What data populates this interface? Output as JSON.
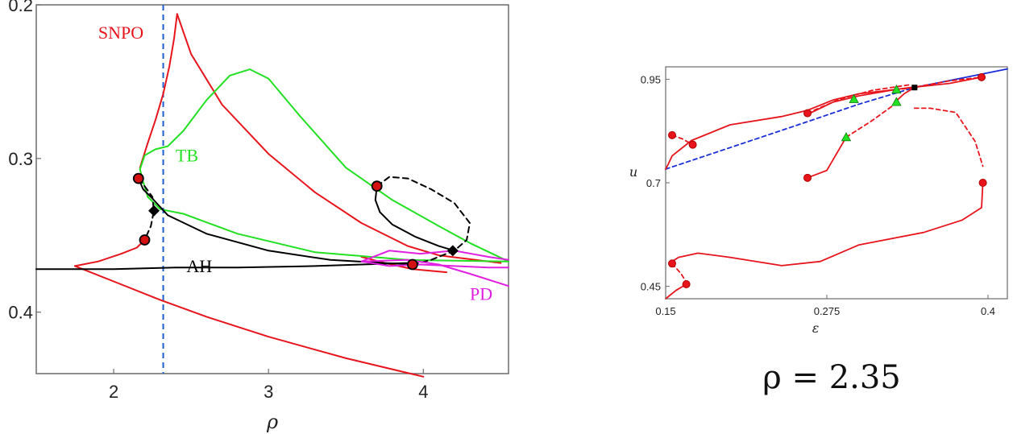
{
  "chart_data": [
    {
      "type": "line",
      "xlabel": "ρ",
      "ylabel": "",
      "xlim": [
        1.5,
        4.55
      ],
      "ylim": [
        0.2,
        0.44
      ],
      "y_inverted": true,
      "xticks": [
        "2",
        "3",
        "4"
      ],
      "yticks": [
        "0.2",
        "0.3",
        "0.4"
      ],
      "xtick_values": [
        2,
        3,
        4
      ],
      "ytick_values": [
        0.2,
        0.3,
        0.4
      ],
      "grid": false,
      "colors": {
        "SNPO": "#e8141c",
        "TB": "#22e022",
        "AH": "#000000",
        "PD": "#e020e0",
        "marker": "#d41010",
        "vline": "#1f5fd0"
      },
      "vline": {
        "x": 2.32
      },
      "annotations": [
        {
          "text": "SNPO",
          "x": 1.9,
          "y": 0.222,
          "color": "#e8141c"
        },
        {
          "text": "TB",
          "x": 2.4,
          "y": 0.302,
          "color": "#22e022"
        },
        {
          "text": "AH",
          "x": 2.47,
          "y": 0.374,
          "color": "#000000"
        },
        {
          "text": "PD",
          "x": 4.3,
          "y": 0.392,
          "color": "#e020e0"
        }
      ],
      "series": [
        {
          "color": "#e8141c",
          "style": "solid",
          "x": [
            1.75,
            1.9,
            2.05,
            2.15,
            2.2
          ],
          "y": [
            0.37,
            0.367,
            0.362,
            0.358,
            0.353
          ]
        },
        {
          "color": "#e8141c",
          "style": "solid",
          "x": [
            1.75,
            2.0,
            2.3,
            2.6,
            3.0,
            3.5,
            4.0
          ],
          "y": [
            0.37,
            0.38,
            0.392,
            0.403,
            0.416,
            0.43,
            0.442
          ]
        },
        {
          "color": "#e8141c",
          "style": "solid",
          "x": [
            2.17,
            2.22,
            2.27,
            2.32,
            2.36,
            2.39,
            2.41
          ],
          "y": [
            0.306,
            0.29,
            0.275,
            0.258,
            0.24,
            0.222,
            0.206
          ]
        },
        {
          "color": "#e8141c",
          "style": "solid",
          "x": [
            2.41,
            2.5,
            2.7,
            3.0,
            3.3,
            3.6,
            3.9,
            4.1,
            4.5
          ],
          "y": [
            0.206,
            0.232,
            0.265,
            0.297,
            0.322,
            0.342,
            0.357,
            0.363,
            0.368
          ]
        },
        {
          "color": "#e8141c",
          "style": "solid",
          "x": [
            3.6,
            3.75,
            3.93,
            4.15
          ],
          "y": [
            0.364,
            0.368,
            0.372,
            0.374
          ]
        },
        {
          "color": "#22e022",
          "style": "solid",
          "x": [
            2.17,
            2.2,
            2.27,
            2.35,
            2.45,
            2.6,
            2.75,
            2.88,
            3.0,
            3.2,
            3.5,
            3.8,
            4.1,
            4.3,
            4.55
          ],
          "y": [
            0.307,
            0.298,
            0.294,
            0.292,
            0.282,
            0.262,
            0.246,
            0.242,
            0.248,
            0.272,
            0.306,
            0.327,
            0.344,
            0.355,
            0.367
          ]
        },
        {
          "color": "#22e022",
          "style": "solid",
          "x": [
            2.17,
            2.19,
            2.22,
            2.3,
            2.45,
            2.8,
            3.3,
            3.9,
            4.55
          ],
          "y": [
            0.307,
            0.315,
            0.325,
            0.333,
            0.336,
            0.349,
            0.361,
            0.366,
            0.367
          ]
        },
        {
          "color": "#000000",
          "style": "solid",
          "x": [
            1.5,
            1.75,
            2.0,
            2.4,
            2.8,
            3.3,
            3.6,
            3.9
          ],
          "y": [
            0.372,
            0.372,
            0.372,
            0.371,
            0.371,
            0.37,
            0.369,
            0.368
          ]
        },
        {
          "color": "#000000",
          "style": "solid",
          "x": [
            2.16,
            2.19,
            2.25,
            2.35,
            2.6,
            3.0,
            3.4,
            3.75,
            3.93
          ],
          "y": [
            0.313,
            0.32,
            0.326,
            0.337,
            0.349,
            0.36,
            0.366,
            0.368,
            0.369
          ]
        },
        {
          "color": "#000000",
          "style": "dashed",
          "x": [
            2.16,
            2.2,
            2.25,
            2.26,
            2.24,
            2.2
          ],
          "y": [
            0.313,
            0.318,
            0.325,
            0.334,
            0.344,
            0.353
          ]
        },
        {
          "color": "#000000",
          "style": "solid",
          "x": [
            3.7,
            3.69,
            3.72,
            3.8,
            3.95,
            4.1,
            4.2
          ],
          "y": [
            0.318,
            0.327,
            0.335,
            0.343,
            0.351,
            0.357,
            0.36
          ]
        },
        {
          "color": "#000000",
          "style": "dashed",
          "x": [
            3.7,
            3.78,
            3.9,
            4.05,
            4.2,
            4.3,
            4.28,
            4.2
          ],
          "y": [
            0.318,
            0.312,
            0.313,
            0.32,
            0.329,
            0.342,
            0.353,
            0.36
          ]
        },
        {
          "color": "#000000",
          "style": "dashed",
          "x": [
            3.93,
            4.05,
            4.15,
            4.2
          ],
          "y": [
            0.369,
            0.366,
            0.362,
            0.36
          ]
        },
        {
          "color": "#e020e0",
          "style": "solid",
          "x": [
            3.6,
            3.78,
            3.98,
            4.2,
            4.42,
            4.55
          ],
          "y": [
            0.367,
            0.36,
            0.362,
            0.36,
            0.364,
            0.366
          ]
        },
        {
          "color": "#e020e0",
          "style": "solid",
          "x": [
            3.6,
            3.78,
            3.98,
            4.2,
            4.42,
            4.55
          ],
          "y": [
            0.367,
            0.37,
            0.369,
            0.37,
            0.371,
            0.371
          ]
        },
        {
          "color": "#e020e0",
          "style": "solid",
          "x": [
            3.6,
            3.9,
            4.1,
            4.3,
            4.55
          ],
          "y": [
            0.367,
            0.366,
            0.369,
            0.375,
            0.383
          ]
        }
      ],
      "markers": [
        {
          "shape": "circle",
          "x": 2.16,
          "y": 0.313
        },
        {
          "shape": "circle",
          "x": 2.2,
          "y": 0.353
        },
        {
          "shape": "circle",
          "x": 3.7,
          "y": 0.318
        },
        {
          "shape": "circle",
          "x": 3.93,
          "y": 0.369
        },
        {
          "shape": "diamond",
          "x": 2.26,
          "y": 0.334
        },
        {
          "shape": "diamond",
          "x": 4.19,
          "y": 0.36
        }
      ]
    },
    {
      "type": "line",
      "xlabel": "ε",
      "ylabel": "u",
      "xlim": [
        0.15,
        0.415
      ],
      "ylim": [
        0.42,
        0.98
      ],
      "xticks": [
        "0.15",
        "0.275",
        "0.4"
      ],
      "yticks": [
        "0.45",
        "0.7",
        "0.95"
      ],
      "xtick_values": [
        0.15,
        0.275,
        0.4
      ],
      "ytick_values": [
        0.45,
        0.7,
        0.95
      ],
      "grid": false,
      "colors": {
        "main": "#e8141c",
        "blue": "#1a2ed8",
        "triangle": "#22e022"
      },
      "series": [
        {
          "color": "#1a2ed8",
          "style": "dashed",
          "x": [
            0.15,
            0.2,
            0.25,
            0.3,
            0.343
          ],
          "y": [
            0.733,
            0.785,
            0.837,
            0.89,
            0.93
          ]
        },
        {
          "color": "#1a2ed8",
          "style": "solid",
          "x": [
            0.343,
            0.38,
            0.415
          ],
          "y": [
            0.93,
            0.953,
            0.975
          ]
        },
        {
          "color": "#e8141c",
          "style": "solid",
          "x": [
            0.15,
            0.152,
            0.155,
            0.17,
            0.2,
            0.24,
            0.26,
            0.28,
            0.3,
            0.32,
            0.34,
            0.37,
            0.395
          ],
          "y": [
            0.733,
            0.745,
            0.765,
            0.802,
            0.84,
            0.86,
            0.875,
            0.9,
            0.915,
            0.922,
            0.93,
            0.94,
            0.955
          ]
        },
        {
          "color": "#e8141c",
          "style": "dashed",
          "x": [
            0.155,
            0.163,
            0.171
          ],
          "y": [
            0.815,
            0.806,
            0.792
          ]
        },
        {
          "color": "#e8141c",
          "style": "solid",
          "x": [
            0.26,
            0.28,
            0.3,
            0.328
          ],
          "y": [
            0.865,
            0.895,
            0.91,
            0.925
          ]
        },
        {
          "color": "#e8141c",
          "style": "dashed",
          "x": [
            0.26,
            0.285,
            0.31,
            0.34
          ],
          "y": [
            0.868,
            0.902,
            0.923,
            0.937
          ]
        },
        {
          "color": "#e8141c",
          "style": "dashed",
          "x": [
            0.328,
            0.345,
            0.37,
            0.395
          ],
          "y": [
            0.925,
            0.932,
            0.946,
            0.955
          ]
        },
        {
          "color": "#e8141c",
          "style": "solid",
          "x": [
            0.26,
            0.275,
            0.29
          ],
          "y": [
            0.712,
            0.73,
            0.81
          ]
        },
        {
          "color": "#e8141c",
          "style": "dashed",
          "x": [
            0.29,
            0.31,
            0.33
          ],
          "y": [
            0.81,
            0.85,
            0.895
          ]
        },
        {
          "color": "#e8141c",
          "style": "dashed",
          "x": [
            0.328,
            0.345
          ],
          "y": [
            0.925,
            0.93
          ]
        },
        {
          "color": "#e8141c",
          "style": "solid",
          "x": [
            0.328,
            0.335,
            0.343
          ],
          "y": [
            0.895,
            0.915,
            0.93
          ]
        },
        {
          "color": "#e8141c",
          "style": "dashed",
          "x": [
            0.343,
            0.355,
            0.375,
            0.39,
            0.396
          ],
          "y": [
            0.88,
            0.88,
            0.87,
            0.8,
            0.74
          ]
        },
        {
          "color": "#e8141c",
          "style": "solid",
          "x": [
            0.396,
            0.395,
            0.38,
            0.35,
            0.3,
            0.27,
            0.24,
            0.2,
            0.175,
            0.16,
            0.155
          ],
          "y": [
            0.7,
            0.64,
            0.61,
            0.58,
            0.55,
            0.51,
            0.5,
            0.52,
            0.53,
            0.52,
            0.51
          ]
        },
        {
          "color": "#e8141c",
          "style": "dashed",
          "x": [
            0.155,
            0.162,
            0.166
          ],
          "y": [
            0.505,
            0.48,
            0.46
          ]
        },
        {
          "color": "#e8141c",
          "style": "solid",
          "x": [
            0.15,
            0.158,
            0.166
          ],
          "y": [
            0.42,
            0.44,
            0.455
          ]
        }
      ],
      "markers": [
        {
          "shape": "circle",
          "x": 0.155,
          "y": 0.815
        },
        {
          "shape": "circle",
          "x": 0.171,
          "y": 0.792
        },
        {
          "shape": "circle",
          "x": 0.26,
          "y": 0.868
        },
        {
          "shape": "circle",
          "x": 0.26,
          "y": 0.712
        },
        {
          "shape": "circle",
          "x": 0.395,
          "y": 0.955
        },
        {
          "shape": "circle",
          "x": 0.396,
          "y": 0.7
        },
        {
          "shape": "circle",
          "x": 0.155,
          "y": 0.505
        },
        {
          "shape": "circle",
          "x": 0.166,
          "y": 0.455
        },
        {
          "shape": "triangle",
          "x": 0.296,
          "y": 0.902
        },
        {
          "shape": "triangle",
          "x": 0.329,
          "y": 0.925
        },
        {
          "shape": "triangle",
          "x": 0.329,
          "y": 0.895
        },
        {
          "shape": "triangle",
          "x": 0.29,
          "y": 0.81
        },
        {
          "shape": "square",
          "x": 0.343,
          "y": 0.93
        }
      ],
      "caption": "ρ = 2.35"
    }
  ]
}
